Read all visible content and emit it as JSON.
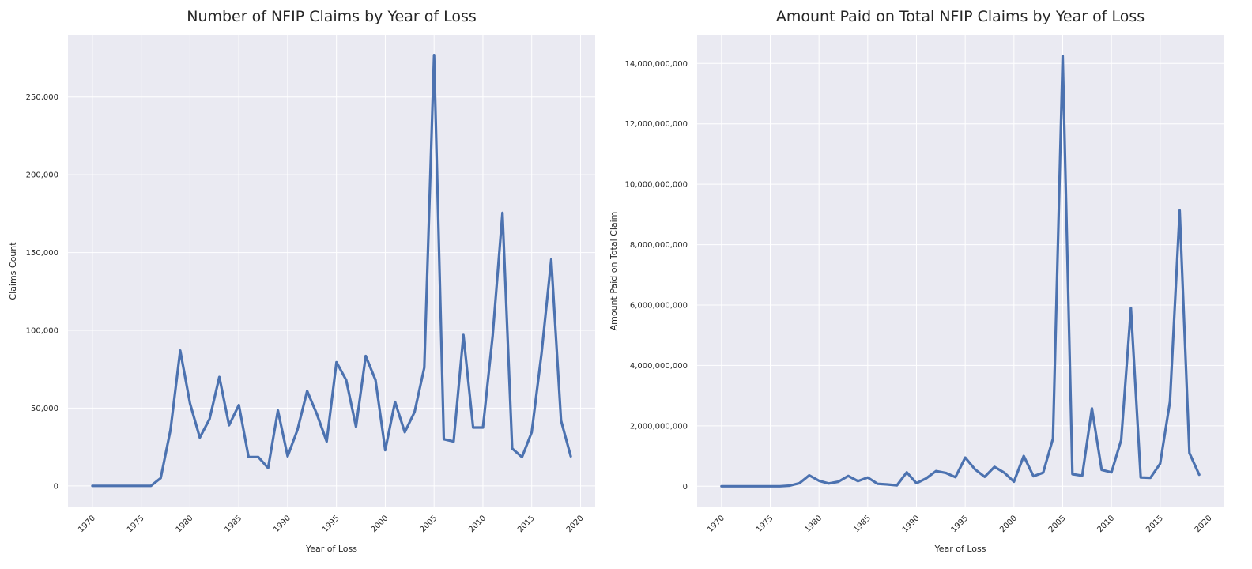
{
  "chart_data": [
    {
      "type": "line",
      "title": "Number of NFIP Claims by Year of Loss",
      "xlabel": "Year of Loss",
      "ylabel": "Claims Count",
      "xlim": [
        1967.5,
        2021.5
      ],
      "ylim": [
        -13800,
        290000
      ],
      "x_ticks": [
        1970,
        1975,
        1980,
        1985,
        1990,
        1995,
        2000,
        2005,
        2010,
        2015,
        2020
      ],
      "x_tick_labels": [
        "1970",
        "1975",
        "1980",
        "1985",
        "1990",
        "1995",
        "2000",
        "2005",
        "2010",
        "2015",
        "2020"
      ],
      "y_ticks": [
        0,
        50000,
        100000,
        150000,
        200000,
        250000
      ],
      "y_tick_labels": [
        "0",
        "50,000",
        "100,000",
        "150,000",
        "200,000",
        "250,000"
      ],
      "grid": true,
      "series": [
        {
          "color": "#4c72b0",
          "x": [
            1970,
            1971,
            1972,
            1973,
            1974,
            1975,
            1976,
            1977,
            1978,
            1979,
            1980,
            1981,
            1982,
            1983,
            1984,
            1985,
            1986,
            1987,
            1988,
            1989,
            1990,
            1991,
            1992,
            1993,
            1994,
            1995,
            1996,
            1997,
            1998,
            1999,
            2000,
            2001,
            2002,
            2003,
            2004,
            2005,
            2006,
            2007,
            2008,
            2009,
            2010,
            2011,
            2012,
            2013,
            2014,
            2015,
            2016,
            2017,
            2018,
            2019
          ],
          "values": [
            0,
            0,
            0,
            0,
            0,
            0,
            0,
            5000,
            36000,
            87000,
            53000,
            31000,
            43000,
            70000,
            39000,
            52000,
            18500,
            18500,
            11500,
            48500,
            19000,
            36000,
            61000,
            46000,
            28500,
            79500,
            68000,
            38000,
            83500,
            68000,
            23000,
            54000,
            34500,
            47500,
            76000,
            277000,
            30000,
            28500,
            97000,
            37500,
            37500,
            96500,
            175500,
            24000,
            18500,
            34500,
            85000,
            145500,
            42000,
            19000
          ]
        }
      ]
    },
    {
      "type": "line",
      "title": "Amount Paid on Total NFIP Claims by Year of Loss",
      "xlabel": "Year of Loss",
      "ylabel": "Amount Paid on Total Claim",
      "xlim": [
        1967.5,
        2021.5
      ],
      "ylim": [
        -700000000,
        14950000000
      ],
      "x_ticks": [
        1970,
        1975,
        1980,
        1985,
        1990,
        1995,
        2000,
        2005,
        2010,
        2015,
        2020
      ],
      "x_tick_labels": [
        "1970",
        "1975",
        "1980",
        "1985",
        "1990",
        "1995",
        "2000",
        "2005",
        "2010",
        "2015",
        "2020"
      ],
      "y_ticks": [
        0,
        2000000000,
        4000000000,
        6000000000,
        8000000000,
        10000000000,
        12000000000,
        14000000000
      ],
      "y_tick_labels": [
        "0",
        "2,000,000,000",
        "4,000,000,000",
        "6,000,000,000",
        "8,000,000,000",
        "10,000,000,000",
        "12,000,000,000",
        "14,000,000,000"
      ],
      "grid": true,
      "series": [
        {
          "color": "#4c72b0",
          "x": [
            1970,
            1971,
            1972,
            1973,
            1974,
            1975,
            1976,
            1977,
            1978,
            1979,
            1980,
            1981,
            1982,
            1983,
            1984,
            1985,
            1986,
            1987,
            1988,
            1989,
            1990,
            1991,
            1992,
            1993,
            1994,
            1995,
            1996,
            1997,
            1998,
            1999,
            2000,
            2001,
            2002,
            2003,
            2004,
            2005,
            2006,
            2007,
            2008,
            2009,
            2010,
            2011,
            2012,
            2013,
            2014,
            2015,
            2016,
            2017,
            2018,
            2019
          ],
          "values": [
            0,
            0,
            0,
            0,
            0,
            0,
            0,
            20000000,
            100000000,
            360000000,
            180000000,
            90000000,
            150000000,
            340000000,
            170000000,
            290000000,
            80000000,
            60000000,
            30000000,
            460000000,
            100000000,
            260000000,
            500000000,
            440000000,
            300000000,
            950000000,
            560000000,
            310000000,
            640000000,
            450000000,
            150000000,
            1000000000,
            330000000,
            450000000,
            1580000000,
            14250000000,
            400000000,
            350000000,
            2580000000,
            540000000,
            460000000,
            1530000000,
            5900000000,
            290000000,
            280000000,
            750000000,
            2800000000,
            9130000000,
            1100000000,
            380000000
          ]
        }
      ]
    }
  ]
}
